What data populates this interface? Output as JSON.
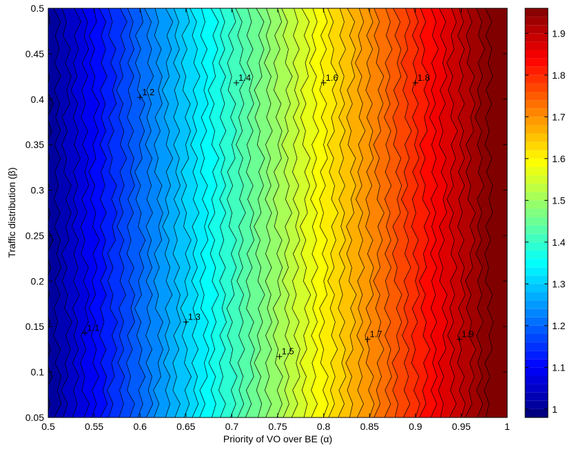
{
  "chart_data": {
    "type": "heatmap",
    "subtype": "filled-contour",
    "title": "",
    "xlabel": "Priority of VO over BE (α)",
    "ylabel": "Traffic distribution (β)",
    "xlim": [
      0.5,
      1.0
    ],
    "ylim": [
      0.05,
      0.5
    ],
    "x_ticks": [
      "0.5",
      "0.55",
      "0.6",
      "0.65",
      "0.7",
      "0.75",
      "0.8",
      "0.85",
      "0.9",
      "0.95",
      "1"
    ],
    "y_ticks": [
      "0.05",
      "0.1",
      "0.15",
      "0.2",
      "0.25",
      "0.3",
      "0.35",
      "0.4",
      "0.45",
      "0.5"
    ],
    "colorbar": {
      "range": [
        0.98,
        1.96
      ],
      "ticks": [
        "1",
        "1.1",
        "1.2",
        "1.3",
        "1.4",
        "1.5",
        "1.6",
        "1.7",
        "1.8",
        "1.9"
      ],
      "colormap": "jet"
    },
    "contour_levels": [
      1.0,
      1.02,
      1.04,
      1.06,
      1.08,
      1.1,
      1.12,
      1.14,
      1.16,
      1.18,
      1.2,
      1.22,
      1.24,
      1.26,
      1.28,
      1.3,
      1.32,
      1.34,
      1.36,
      1.38,
      1.4,
      1.42,
      1.44,
      1.46,
      1.48,
      1.5,
      1.52,
      1.54,
      1.56,
      1.58,
      1.6,
      1.62,
      1.64,
      1.66,
      1.68,
      1.7,
      1.72,
      1.74,
      1.76,
      1.78,
      1.8,
      1.82,
      1.84,
      1.86,
      1.88,
      1.9,
      1.92,
      1.94,
      1.96
    ],
    "value_function": "approximately 1 + 2·(α − 0.5), nearly independent of β",
    "contour_labels": [
      {
        "text": "1.1",
        "x": 0.54,
        "y": 0.143
      },
      {
        "text": "1.2",
        "x": 0.6,
        "y": 0.402
      },
      {
        "text": "1.3",
        "x": 0.65,
        "y": 0.155
      },
      {
        "text": "1.4",
        "x": 0.705,
        "y": 0.418
      },
      {
        "text": "1.5",
        "x": 0.752,
        "y": 0.117
      },
      {
        "text": "1.6",
        "x": 0.8,
        "y": 0.418
      },
      {
        "text": "1.7",
        "x": 0.848,
        "y": 0.136
      },
      {
        "text": "1.8",
        "x": 0.9,
        "y": 0.418
      },
      {
        "text": "1.9",
        "x": 0.948,
        "y": 0.136
      }
    ]
  }
}
